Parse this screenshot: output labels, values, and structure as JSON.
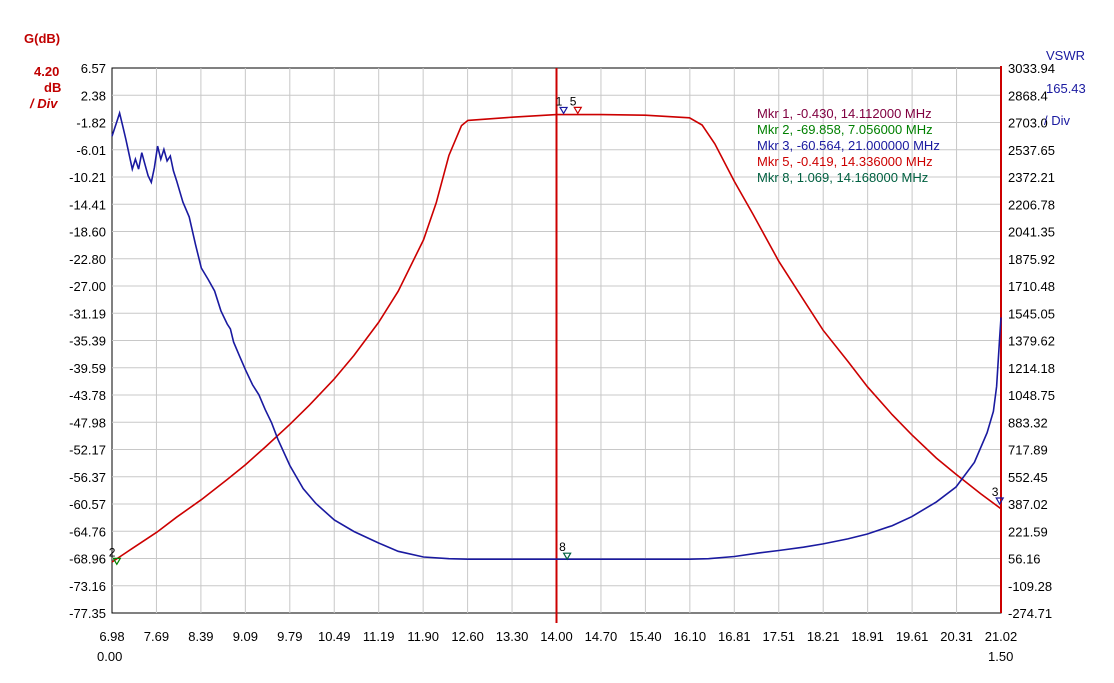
{
  "chart_data": {
    "type": "line",
    "left_axis": {
      "label": "G(dB)",
      "div_value": "4.20",
      "div_unit": "dB",
      "div_suffix": "/ Div",
      "min": -77.35,
      "max": 6.57,
      "ticks": [
        "6.57",
        "2.38",
        "-1.82",
        "-6.01",
        "-10.21",
        "-14.41",
        "-18.60",
        "-22.80",
        "-27.00",
        "-31.19",
        "-35.39",
        "-39.59",
        "-43.78",
        "-47.98",
        "-52.17",
        "-56.37",
        "-60.57",
        "-64.76",
        "-68.96",
        "-73.16",
        "-77.35"
      ],
      "color": "#cc0000"
    },
    "right_axis": {
      "label": "VSWR",
      "div_value": "165.43",
      "div_suffix": "/ Div",
      "min": -274.71,
      "max": 3033.94,
      "ticks": [
        "3033.94",
        "2868.4",
        "2703.0",
        "2537.65",
        "2372.21",
        "2206.78",
        "2041.35",
        "1875.92",
        "1710.48",
        "1545.05",
        "1379.62",
        "1214.18",
        "1048.75",
        "883.32",
        "717.89",
        "552.45",
        "387.02",
        "221.59",
        "56.16",
        "-109.28",
        "-274.71"
      ],
      "color": "#1a1aa0"
    },
    "x_axis": {
      "min": 6.98,
      "max": 21.02,
      "ticks": [
        "6.98",
        "7.69",
        "8.39",
        "9.09",
        "9.79",
        "10.49",
        "11.19",
        "11.90",
        "12.60",
        "13.30",
        "14.00",
        "14.70",
        "15.40",
        "16.10",
        "16.81",
        "17.51",
        "18.21",
        "18.91",
        "19.61",
        "20.31",
        "21.02"
      ],
      "secondary_min": "0.00",
      "secondary_max": "1.50"
    },
    "cursor_x": 14.0,
    "series": [
      {
        "axis": "left",
        "color": "#cc0000",
        "points": [
          [
            6.98,
            -69.5
          ],
          [
            7.3,
            -67.4
          ],
          [
            7.69,
            -64.9
          ],
          [
            8.0,
            -62.6
          ],
          [
            8.39,
            -59.9
          ],
          [
            8.8,
            -56.8
          ],
          [
            9.09,
            -54.5
          ],
          [
            9.4,
            -51.8
          ],
          [
            9.79,
            -48.3
          ],
          [
            10.1,
            -45.3
          ],
          [
            10.49,
            -41.3
          ],
          [
            10.8,
            -37.7
          ],
          [
            11.19,
            -32.6
          ],
          [
            11.5,
            -27.8
          ],
          [
            11.9,
            -19.9
          ],
          [
            12.1,
            -14.2
          ],
          [
            12.3,
            -6.9
          ],
          [
            12.5,
            -2.3
          ],
          [
            12.6,
            -1.5
          ],
          [
            13.3,
            -1.0
          ],
          [
            14.0,
            -0.6
          ],
          [
            14.7,
            -0.6
          ],
          [
            15.4,
            -0.7
          ],
          [
            16.1,
            -1.1
          ],
          [
            16.3,
            -2.2
          ],
          [
            16.5,
            -5.1
          ],
          [
            16.81,
            -10.9
          ],
          [
            17.1,
            -15.9
          ],
          [
            17.51,
            -23.2
          ],
          [
            17.9,
            -29.1
          ],
          [
            18.21,
            -33.8
          ],
          [
            18.6,
            -38.6
          ],
          [
            18.91,
            -42.5
          ],
          [
            19.3,
            -46.8
          ],
          [
            19.61,
            -49.9
          ],
          [
            20.0,
            -53.5
          ],
          [
            20.31,
            -56.0
          ],
          [
            20.7,
            -59.0
          ],
          [
            21.02,
            -61.3
          ]
        ]
      },
      {
        "axis": "right",
        "color": "#1a1aa0",
        "points": [
          [
            6.98,
            2620
          ],
          [
            7.05,
            2700
          ],
          [
            7.1,
            2760
          ],
          [
            7.15,
            2680
          ],
          [
            7.2,
            2600
          ],
          [
            7.3,
            2420
          ],
          [
            7.35,
            2480
          ],
          [
            7.4,
            2420
          ],
          [
            7.45,
            2520
          ],
          [
            7.5,
            2450
          ],
          [
            7.55,
            2380
          ],
          [
            7.6,
            2340
          ],
          [
            7.65,
            2430
          ],
          [
            7.7,
            2560
          ],
          [
            7.75,
            2480
          ],
          [
            7.8,
            2540
          ],
          [
            7.85,
            2470
          ],
          [
            7.9,
            2500
          ],
          [
            7.95,
            2410
          ],
          [
            8.0,
            2350
          ],
          [
            8.1,
            2220
          ],
          [
            8.2,
            2130
          ],
          [
            8.3,
            1960
          ],
          [
            8.39,
            1820
          ],
          [
            8.5,
            1750
          ],
          [
            8.6,
            1680
          ],
          [
            8.7,
            1560
          ],
          [
            8.8,
            1480
          ],
          [
            8.85,
            1450
          ],
          [
            8.9,
            1370
          ],
          [
            9.0,
            1280
          ],
          [
            9.09,
            1200
          ],
          [
            9.2,
            1110
          ],
          [
            9.3,
            1050
          ],
          [
            9.4,
            960
          ],
          [
            9.5,
            880
          ],
          [
            9.6,
            780
          ],
          [
            9.79,
            620
          ],
          [
            10.0,
            480
          ],
          [
            10.2,
            390
          ],
          [
            10.49,
            290
          ],
          [
            10.8,
            220
          ],
          [
            11.19,
            150
          ],
          [
            11.5,
            100
          ],
          [
            11.9,
            65
          ],
          [
            12.3,
            55
          ],
          [
            12.6,
            52
          ],
          [
            13.3,
            52
          ],
          [
            14.0,
            52
          ],
          [
            14.7,
            52
          ],
          [
            15.4,
            52
          ],
          [
            16.1,
            52
          ],
          [
            16.4,
            55
          ],
          [
            16.81,
            68
          ],
          [
            17.2,
            90
          ],
          [
            17.51,
            105
          ],
          [
            17.9,
            125
          ],
          [
            18.21,
            145
          ],
          [
            18.6,
            175
          ],
          [
            18.91,
            205
          ],
          [
            19.3,
            255
          ],
          [
            19.61,
            310
          ],
          [
            20.0,
            400
          ],
          [
            20.31,
            490
          ],
          [
            20.6,
            640
          ],
          [
            20.8,
            820
          ],
          [
            20.9,
            950
          ],
          [
            20.95,
            1100
          ],
          [
            21.0,
            1400
          ],
          [
            21.02,
            1520
          ]
        ]
      }
    ],
    "markers": [
      {
        "num": "1",
        "x": 14.112,
        "y": -0.43,
        "axis": "left",
        "color": "#1a1aa0",
        "text": "Mkr 1, -0.430, 14.112000 MHz",
        "text_color": "#800040"
      },
      {
        "num": "2",
        "x": 7.056,
        "y": -69.858,
        "axis": "left",
        "color": "#008000",
        "text": "Mkr 2, -69.858, 7.056000 MHz",
        "text_color": "#008000"
      },
      {
        "num": "3",
        "x": 21.0,
        "y": 387.02,
        "axis": "right",
        "color": "#1a1aa0",
        "text": "Mkr 3, -60.564, 21.000000 MHz",
        "text_color": "#1a1aa0"
      },
      {
        "num": "5",
        "x": 14.336,
        "y": -0.419,
        "axis": "left",
        "color": "#cc0000",
        "text": "Mkr 5, -0.419, 14.336000 MHz",
        "text_color": "#cc0000"
      },
      {
        "num": "8",
        "x": 14.168,
        "y": 52,
        "axis": "right",
        "color": "#006040",
        "text": "Mkr 8, 1.069, 14.168000 MHz",
        "text_color": "#006040"
      }
    ]
  }
}
